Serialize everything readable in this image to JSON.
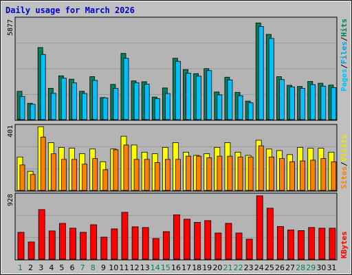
{
  "title": "Daily usage for March 2026",
  "colors": {
    "background": "#c0c0c0",
    "panel": "#b4b4b4",
    "hits": "#00805c",
    "files": "#00c0ff",
    "pages": "#00c0ff",
    "visits": "#ffff00",
    "sites": "#ff8000",
    "kbytes": "#ff0000",
    "weekday_label": "#000000",
    "weekend_label": "#00805c"
  },
  "legend": {
    "top": [
      "Pages",
      "/",
      "Files",
      "/",
      "Hits"
    ],
    "middle": [
      "Sites",
      "/",
      "Visits"
    ],
    "bottom": [
      "KBytes"
    ]
  },
  "chart_data": [
    {
      "type": "bar",
      "panel": "hits-files-pages",
      "ymax_label": "5877",
      "ylim": [
        0,
        5877
      ],
      "x": [
        "1",
        "2",
        "3",
        "4",
        "5",
        "6",
        "7",
        "8",
        "9",
        "10",
        "11",
        "12",
        "13",
        "14",
        "15",
        "16",
        "17",
        "18",
        "19",
        "20",
        "21",
        "22",
        "23",
        "24",
        "25",
        "26",
        "27",
        "28",
        "29",
        "30",
        "31"
      ],
      "weekend_days": [
        "1",
        "7",
        "8",
        "14",
        "15",
        "21",
        "22",
        "28",
        "29"
      ],
      "series": [
        {
          "name": "Hits",
          "values": [
            1680,
            970,
            4280,
            1860,
            2600,
            2400,
            1680,
            2550,
            1310,
            2090,
            3930,
            2300,
            2250,
            1340,
            1880,
            3640,
            2970,
            2730,
            3030,
            1640,
            2520,
            1620,
            1100,
            5740,
            5060,
            2550,
            2040,
            1970,
            2270,
            2160,
            2050
          ]
        },
        {
          "name": "Files",
          "values": [
            1370,
            910,
            3870,
            1560,
            2460,
            2180,
            1550,
            2330,
            1290,
            1850,
            3640,
            2190,
            2100,
            1250,
            1550,
            3460,
            2750,
            2580,
            2910,
            1470,
            2360,
            1420,
            1000,
            5530,
            4820,
            2380,
            1940,
            1860,
            2080,
            1990,
            1900
          ]
        },
        {
          "name": "Pages",
          "values": [
            1370,
            910,
            3870,
            1560,
            2460,
            2180,
            1550,
            2330,
            1290,
            1850,
            3640,
            2190,
            2100,
            1250,
            1550,
            3460,
            2750,
            2580,
            2910,
            1470,
            2360,
            1420,
            1000,
            5530,
            4820,
            2380,
            1940,
            1860,
            2080,
            1990,
            1900
          ]
        }
      ]
    },
    {
      "type": "bar",
      "panel": "sites-visits",
      "ymax_label": "401",
      "ylim": [
        0,
        401
      ],
      "x": [
        "1",
        "2",
        "3",
        "4",
        "5",
        "6",
        "7",
        "8",
        "9",
        "10",
        "11",
        "12",
        "13",
        "14",
        "15",
        "16",
        "17",
        "18",
        "19",
        "20",
        "21",
        "22",
        "23",
        "24",
        "25",
        "26",
        "27",
        "28",
        "29",
        "30",
        "31"
      ],
      "series": [
        {
          "name": "Visits",
          "values": [
            210,
            120,
            400,
            300,
            270,
            265,
            230,
            260,
            180,
            260,
            340,
            285,
            240,
            230,
            270,
            300,
            240,
            220,
            230,
            270,
            300,
            240,
            220,
            315,
            260,
            250,
            225,
            270,
            265,
            265,
            240
          ]
        },
        {
          "name": "Sites",
          "values": [
            160,
            100,
            335,
            230,
            195,
            195,
            165,
            200,
            130,
            255,
            285,
            195,
            195,
            175,
            195,
            195,
            215,
            215,
            205,
            215,
            215,
            210,
            210,
            280,
            210,
            200,
            180,
            185,
            190,
            200,
            180
          ]
        }
      ]
    },
    {
      "type": "bar",
      "panel": "kbytes",
      "ymax_label": "928",
      "ylim": [
        0,
        928
      ],
      "x": [
        "1",
        "2",
        "3",
        "4",
        "5",
        "6",
        "7",
        "8",
        "9",
        "10",
        "11",
        "12",
        "13",
        "14",
        "15",
        "16",
        "17",
        "18",
        "19",
        "20",
        "21",
        "22",
        "23",
        "24",
        "25",
        "26",
        "27",
        "28",
        "29",
        "30",
        "31"
      ],
      "series": [
        {
          "name": "KBytes",
          "values": [
            390,
            250,
            720,
            410,
            520,
            450,
            390,
            500,
            320,
            440,
            680,
            470,
            460,
            300,
            400,
            645,
            580,
            535,
            560,
            380,
            520,
            380,
            290,
            920,
            740,
            475,
            425,
            415,
            460,
            450,
            450
          ]
        }
      ]
    }
  ]
}
